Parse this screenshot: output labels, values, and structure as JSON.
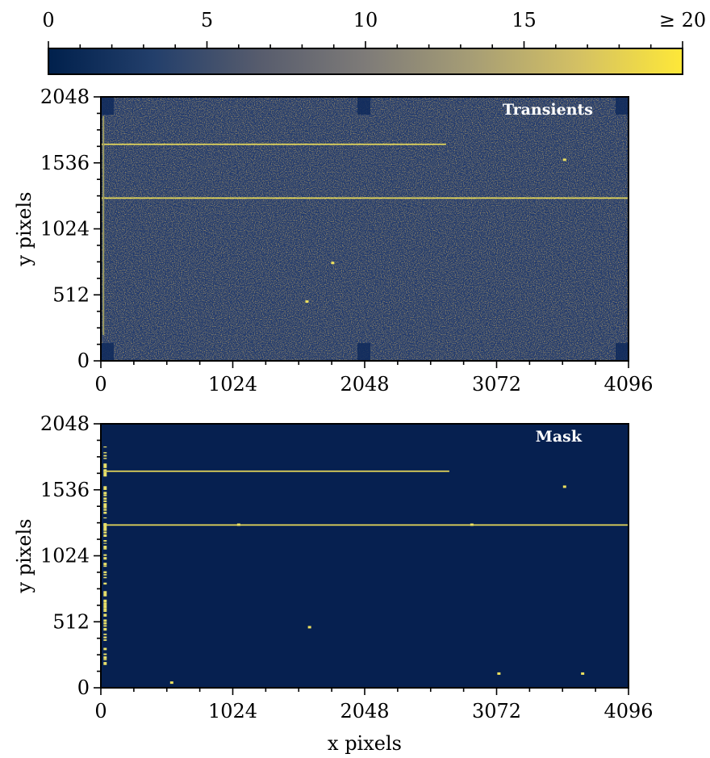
{
  "chart_data": [
    {
      "type": "colorbar",
      "ticks": [
        {
          "value": 0,
          "label": "0"
        },
        {
          "value": 5,
          "label": "5"
        },
        {
          "value": 10,
          "label": "10"
        },
        {
          "value": 15,
          "label": "15"
        },
        {
          "value": 20,
          "label": "≥ 20"
        }
      ],
      "range": [
        0,
        20
      ],
      "colormap": [
        "#00204c",
        "#233f6b",
        "#575c6d",
        "#7e7b78",
        "#a69d75",
        "#d3c064",
        "#fee838"
      ]
    },
    {
      "type": "heatmap",
      "annotation": "Transients",
      "xlabel": "",
      "ylabel": "y pixels",
      "xlim": [
        0,
        4096
      ],
      "ylim": [
        0,
        2048
      ],
      "xticks": [
        0,
        1024,
        2048,
        3072,
        4096
      ],
      "yticks": [
        0,
        512,
        1024,
        1536,
        2048
      ],
      "background": "noise",
      "features": [
        {
          "kind": "hline",
          "y": 1680,
          "x0": 0,
          "x1": 2680
        },
        {
          "kind": "hline",
          "y": 1263,
          "x0": 0,
          "x1": 4096
        },
        {
          "kind": "vline",
          "x": 20,
          "y0": 200,
          "y1": 1900
        }
      ],
      "points": [
        [
          3600,
          1560
        ],
        [
          1600,
          460
        ],
        [
          1800,
          760
        ]
      ]
    },
    {
      "type": "heatmap",
      "annotation": "Mask",
      "xlabel": "x pixels",
      "ylabel": "y pixels",
      "xlim": [
        0,
        4096
      ],
      "ylim": [
        0,
        2048
      ],
      "xticks": [
        0,
        1024,
        2048,
        3072,
        4096
      ],
      "yticks": [
        0,
        512,
        1024,
        1536,
        2048
      ],
      "background": "flat",
      "features": [
        {
          "kind": "hline",
          "y": 1680,
          "x0": 20,
          "x1": 2705
        },
        {
          "kind": "hline",
          "y": 1263,
          "x0": 20,
          "x1": 4096
        }
      ],
      "points": [
        [
          1070,
          1265
        ],
        [
          2880,
          1265
        ],
        [
          3600,
          1560
        ],
        [
          1620,
          470
        ],
        [
          550,
          40
        ],
        [
          3090,
          110
        ],
        [
          3740,
          110
        ]
      ],
      "column_points_x": 30
    }
  ]
}
